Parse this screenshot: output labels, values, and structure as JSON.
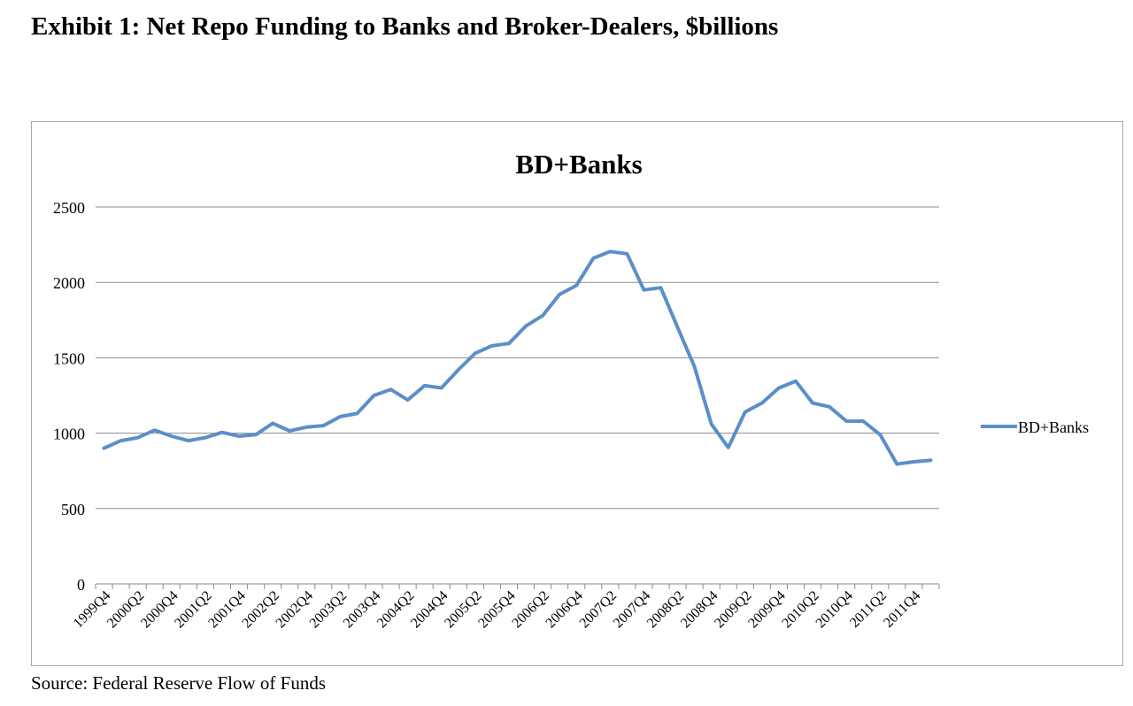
{
  "page": {
    "exhibit_title": "Exhibit 1: Net Repo Funding to Banks and Broker-Dealers, $billions",
    "source": "Source: Federal Reserve Flow of Funds"
  },
  "colors": {
    "series_line": "#5b8fc7",
    "gridline": "#8c8c8c",
    "axis": "#8c8c8c"
  },
  "chart_data": {
    "type": "line",
    "title": "BD+Banks",
    "xlabel": "",
    "ylabel": "",
    "ylim": [
      0,
      2500
    ],
    "yticks": [
      0,
      500,
      1000,
      1500,
      2000,
      2500
    ],
    "grid": true,
    "legend": "right",
    "x": [
      "1999Q4",
      "2000Q1",
      "2000Q2",
      "2000Q3",
      "2000Q4",
      "2001Q1",
      "2001Q2",
      "2001Q3",
      "2001Q4",
      "2002Q1",
      "2002Q2",
      "2002Q3",
      "2002Q4",
      "2003Q1",
      "2003Q2",
      "2003Q3",
      "2003Q4",
      "2004Q1",
      "2004Q2",
      "2004Q3",
      "2004Q4",
      "2005Q1",
      "2005Q2",
      "2005Q3",
      "2005Q4",
      "2006Q1",
      "2006Q2",
      "2006Q3",
      "2006Q4",
      "2007Q1",
      "2007Q2",
      "2007Q3",
      "2007Q4",
      "2008Q1",
      "2008Q2",
      "2008Q3",
      "2008Q4",
      "2009Q1",
      "2009Q2",
      "2009Q3",
      "2009Q4",
      "2010Q1",
      "2010Q2",
      "2010Q3",
      "2010Q4",
      "2011Q1",
      "2011Q2",
      "2011Q3",
      "2011Q4",
      "2012Q1"
    ],
    "tick_labels": [
      "1999Q4",
      "2000Q2",
      "2000Q4",
      "2001Q2",
      "2001Q4",
      "2002Q2",
      "2002Q4",
      "2003Q2",
      "2003Q4",
      "2004Q2",
      "2004Q4",
      "2005Q2",
      "2005Q4",
      "2006Q2",
      "2006Q4",
      "2007Q2",
      "2007Q4",
      "2008Q2",
      "2008Q4",
      "2009Q2",
      "2009Q4",
      "2010Q2",
      "2010Q4",
      "2011Q2",
      "2011Q4"
    ],
    "series": [
      {
        "name": "BD+Banks",
        "values": [
          900,
          950,
          970,
          1020,
          980,
          950,
          970,
          1005,
          980,
          990,
          1065,
          1015,
          1040,
          1050,
          1110,
          1130,
          1250,
          1290,
          1220,
          1315,
          1300,
          1420,
          1530,
          1580,
          1595,
          1710,
          1780,
          1920,
          1980,
          2160,
          2205,
          2190,
          1950,
          1965,
          1700,
          1440,
          1060,
          905,
          1140,
          1200,
          1300,
          1345,
          1200,
          1175,
          1080,
          1080,
          990,
          795,
          810,
          820
        ]
      }
    ]
  }
}
